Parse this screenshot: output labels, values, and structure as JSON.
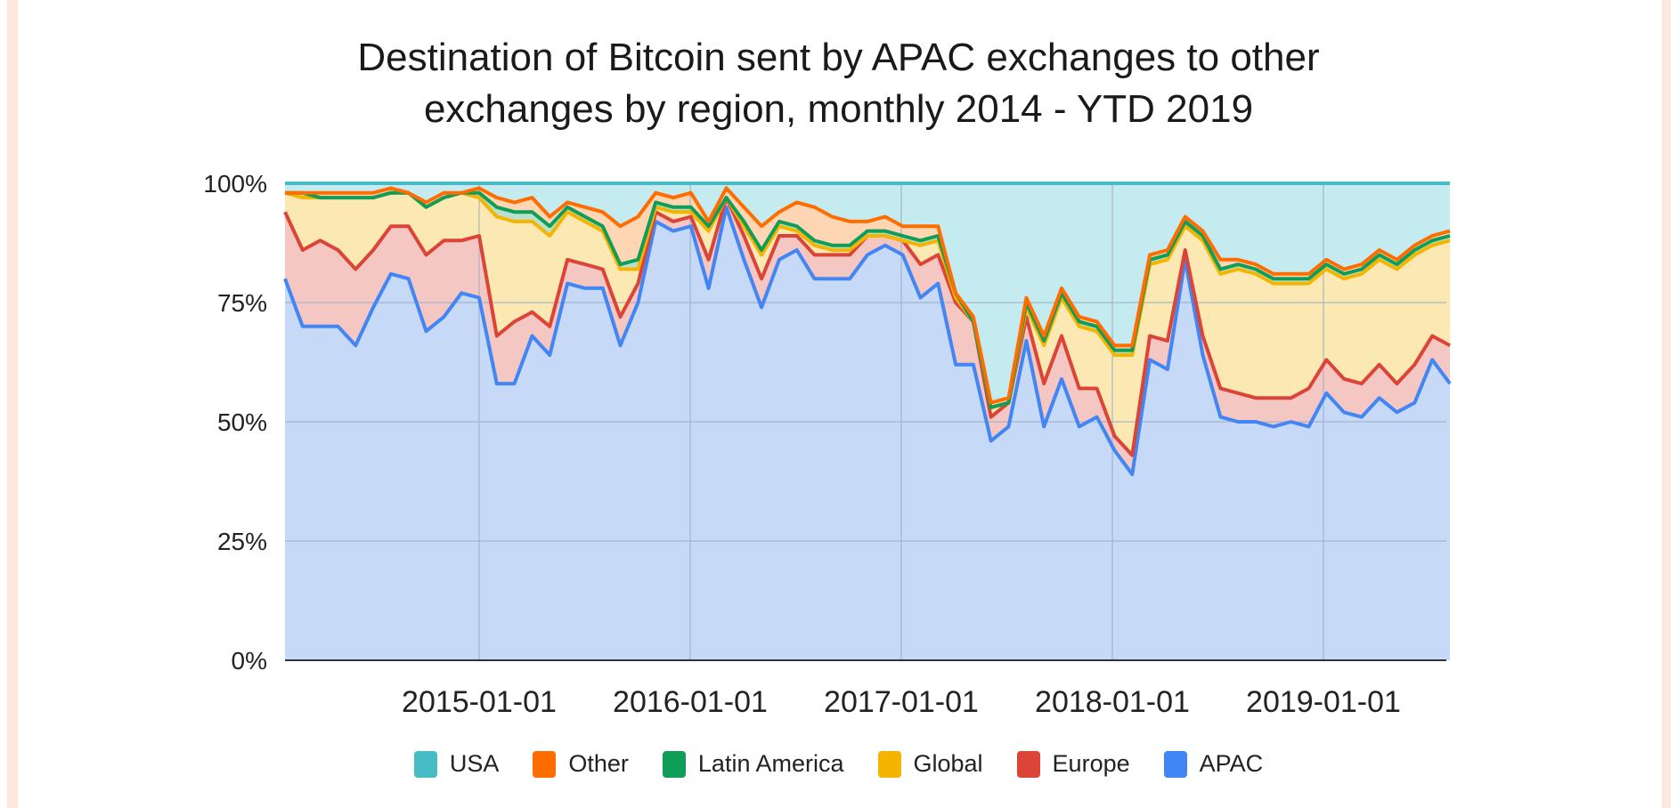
{
  "chart_data": {
    "type": "area",
    "stacked": true,
    "title_lines": [
      "Destination of Bitcoin sent by APAC exchanges to other",
      "exchanges by region, monthly 2014 - YTD 2019"
    ],
    "xlabel": "",
    "ylabel": "",
    "ylim": [
      0,
      100
    ],
    "y_ticks": [
      "0%",
      "25%",
      "50%",
      "75%",
      "100%"
    ],
    "y_tick_values": [
      0,
      25,
      50,
      75,
      100
    ],
    "x_ticks": [
      "2015-01-01",
      "2016-01-01",
      "2017-01-01",
      "2018-01-01",
      "2019-01-01"
    ],
    "x_start": "2014-02",
    "x_end": "2019-08",
    "legend_position": "bottom",
    "grid": true,
    "cumulative_note": "values are each region's share in percent; stacked bottom to top APAC, Europe, Global, Latin America, Other, USA",
    "series": [
      {
        "name": "APAC",
        "color": "#4285f4",
        "fill": "#c6d9f7",
        "values": [
          80,
          70,
          70,
          70,
          66,
          74,
          81,
          80,
          69,
          72,
          77,
          76,
          58,
          58,
          68,
          64,
          79,
          78,
          78,
          66,
          75,
          92,
          90,
          91,
          78,
          95,
          84,
          74,
          84,
          86,
          80,
          80,
          80,
          85,
          87,
          85,
          76,
          79,
          62,
          62,
          46,
          49,
          67,
          49,
          59,
          49,
          51,
          44,
          39,
          63,
          61,
          84,
          64,
          51,
          50,
          50,
          49,
          50,
          49,
          56,
          52,
          51,
          55,
          52,
          54,
          63,
          58
        ]
      },
      {
        "name": "Europe",
        "color": "#db4437",
        "fill": "#f4c7c3",
        "values": [
          14,
          16,
          18,
          16,
          16,
          12,
          10,
          11,
          16,
          16,
          11,
          13,
          10,
          13,
          5,
          6,
          5,
          5,
          4,
          6,
          4,
          2,
          2,
          2,
          6,
          2,
          5,
          6,
          5,
          3,
          5,
          5,
          5,
          4,
          2,
          3,
          7,
          6,
          13,
          9,
          5,
          5,
          5,
          9,
          9,
          8,
          6,
          3,
          4,
          5,
          6,
          2,
          4,
          6,
          6,
          5,
          6,
          5,
          8,
          7,
          7,
          7,
          7,
          6,
          8,
          5,
          8
        ]
      },
      {
        "name": "Global",
        "color": "#f4b400",
        "fill": "#fce8b2",
        "values": [
          4,
          11,
          9,
          11,
          15,
          11,
          7,
          7,
          10,
          9,
          10,
          8,
          25,
          21,
          19,
          19,
          10,
          9,
          8,
          10,
          3,
          1,
          2,
          1,
          6,
          0,
          2,
          5,
          2,
          1,
          2,
          1,
          1,
          0,
          0,
          0,
          4,
          3,
          1,
          0,
          2,
          0,
          2,
          8,
          8,
          13,
          12,
          17,
          21,
          15,
          17,
          5,
          20,
          24,
          26,
          26,
          24,
          24,
          22,
          19,
          21,
          23,
          22,
          24,
          23,
          19,
          22
        ]
      },
      {
        "name": "Latin America",
        "color": "#0f9d58",
        "fill": "#b7e1cd",
        "values": [
          0,
          1,
          0,
          0,
          0,
          0,
          0,
          0,
          0,
          0,
          0,
          1,
          2,
          2,
          2,
          2,
          1,
          1,
          1,
          1,
          2,
          1,
          1,
          1,
          1,
          0,
          1,
          1,
          1,
          1,
          1,
          1,
          1,
          1,
          1,
          1,
          1,
          1,
          1,
          0,
          0,
          0,
          1,
          1,
          1,
          1,
          1,
          1,
          1,
          1,
          1,
          1,
          1,
          1,
          1,
          1,
          1,
          1,
          1,
          1,
          1,
          1,
          1,
          1,
          1,
          1,
          1
        ]
      },
      {
        "name": "Other",
        "color": "#ff6d00",
        "fill": "#ffd6b3",
        "values": [
          0,
          0,
          1,
          1,
          1,
          1,
          1,
          0,
          1,
          1,
          0,
          1,
          2,
          2,
          3,
          2,
          1,
          2,
          3,
          8,
          9,
          2,
          2,
          3,
          1,
          2,
          3,
          5,
          2,
          5,
          7,
          6,
          5,
          2,
          3,
          2,
          3,
          2,
          0,
          1,
          1,
          1,
          1,
          1,
          1,
          1,
          1,
          1,
          1,
          1,
          1,
          1,
          1,
          2,
          1,
          1,
          1,
          1,
          1,
          1,
          1,
          1,
          1,
          1,
          1,
          1,
          1
        ]
      },
      {
        "name": "USA",
        "color": "#46bdc6",
        "fill": "#c4ebef",
        "values": [
          2,
          2,
          2,
          2,
          2,
          2,
          2,
          2,
          4,
          3,
          2,
          1,
          3,
          4,
          3,
          7,
          4,
          5,
          6,
          9,
          7,
          2,
          3,
          2,
          8,
          1,
          5,
          9,
          6,
          4,
          5,
          7,
          8,
          8,
          7,
          9,
          9,
          9,
          23,
          28,
          46,
          45,
          24,
          32,
          22,
          28,
          29,
          32,
          34,
          15,
          14,
          7,
          11,
          16,
          16,
          17,
          19,
          19,
          19,
          16,
          18,
          17,
          14,
          16,
          13,
          11,
          10
        ]
      }
    ]
  },
  "legend": {
    "items": [
      {
        "label": "USA",
        "color": "#46bdc6"
      },
      {
        "label": "Other",
        "color": "#ff6d00"
      },
      {
        "label": "Latin America",
        "color": "#0f9d58"
      },
      {
        "label": "Global",
        "color": "#f4b400"
      },
      {
        "label": "Europe",
        "color": "#db4437"
      },
      {
        "label": "APAC",
        "color": "#4285f4"
      }
    ]
  }
}
